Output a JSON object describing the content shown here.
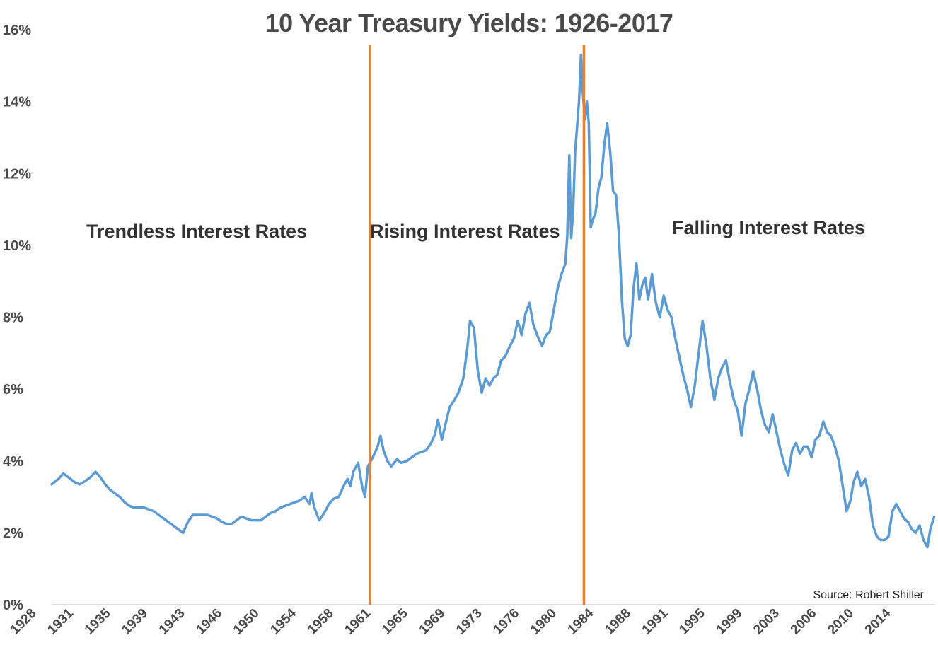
{
  "title": "10 Year Treasury Yields: 1926-2017",
  "colors": {
    "line": "#5b9bd5",
    "divider": "#ed7d31",
    "text": "#4a4a4a",
    "axis": "#d0d0d0"
  },
  "chart_data": {
    "type": "line",
    "title": "10 Year Treasury Yields: 1926-2017",
    "xlabel": "",
    "ylabel": "",
    "xlim": [
      1926.8,
      2017.6
    ],
    "ylim": [
      0,
      16
    ],
    "y_ticks": [
      0,
      2,
      4,
      6,
      8,
      10,
      12,
      14,
      16
    ],
    "y_tick_labels": [
      "0%",
      "2%",
      "4%",
      "6%",
      "8%",
      "10%",
      "12%",
      "14%",
      "16%"
    ],
    "x_tick_labels": [
      "1928",
      "1931",
      "1935",
      "1939",
      "1943",
      "1946",
      "1950",
      "1954",
      "1958",
      "1961",
      "1965",
      "1969",
      "1973",
      "1976",
      "1980",
      "1984",
      "1988",
      "1991",
      "1995",
      "1999",
      "2003",
      "2006",
      "2010",
      "2014"
    ],
    "grid": false,
    "legend": "none",
    "dividers": [
      1959.5,
      1981.5
    ],
    "regions": [
      "Trendless Interest Rates",
      "Rising Interest Rates",
      "Falling Interest Rates"
    ],
    "source": "Source: Robert Shiller",
    "series": [
      {
        "x": [
          1926.8,
          1927.5,
          1928.0,
          1928.5,
          1929.2,
          1929.7,
          1930.3,
          1930.8,
          1931.3,
          1931.8,
          1932.3,
          1932.8,
          1933.3,
          1933.8,
          1934.3,
          1934.8,
          1935.3,
          1935.8,
          1936.3,
          1936.8,
          1937.3,
          1937.8,
          1938.3,
          1938.8,
          1939.3,
          1939.8,
          1940.3,
          1940.8,
          1941.3,
          1941.8,
          1942.3,
          1942.8,
          1943.3,
          1943.8,
          1944.3,
          1944.8,
          1945.3,
          1945.8,
          1946.3,
          1946.8,
          1947.3,
          1947.8,
          1948.3,
          1948.8,
          1949.3,
          1949.8,
          1950.3,
          1950.8,
          1951.3,
          1951.8,
          1952.3,
          1952.8,
          1953.3,
          1953.5,
          1953.8,
          1954.3,
          1954.8,
          1955.3,
          1955.8,
          1956.3,
          1956.8,
          1957.2,
          1957.5,
          1957.8,
          1958.3,
          1958.7,
          1959.0,
          1959.3,
          1959.8,
          1960.3,
          1960.6,
          1960.9,
          1961.3,
          1961.7,
          1962.3,
          1962.7,
          1963.3,
          1963.8,
          1964.3,
          1964.8,
          1965.3,
          1965.8,
          1966.2,
          1966.5,
          1966.9,
          1967.3,
          1967.7,
          1968.2,
          1968.6,
          1969.1,
          1969.5,
          1969.8,
          1970.2,
          1970.6,
          1971.0,
          1971.4,
          1971.8,
          1972.2,
          1972.6,
          1973.0,
          1973.4,
          1973.9,
          1974.3,
          1974.7,
          1975.1,
          1975.5,
          1975.9,
          1976.3,
          1976.7,
          1977.2,
          1977.6,
          1978.0,
          1978.4,
          1978.8,
          1979.2,
          1979.6,
          1979.8,
          1980.0,
          1980.2,
          1980.4,
          1980.6,
          1980.8,
          1981.0,
          1981.2,
          1981.4,
          1981.6,
          1981.8,
          1982.0,
          1982.2,
          1982.4,
          1982.7,
          1983.0,
          1983.3,
          1983.6,
          1983.9,
          1984.2,
          1984.5,
          1984.8,
          1985.1,
          1985.4,
          1985.7,
          1986.0,
          1986.3,
          1986.6,
          1986.9,
          1987.2,
          1987.5,
          1987.8,
          1988.1,
          1988.5,
          1988.9,
          1989.3,
          1989.7,
          1990.1,
          1990.5,
          1990.9,
          1991.3,
          1991.7,
          1992.1,
          1992.5,
          1992.9,
          1993.3,
          1993.7,
          1994.1,
          1994.5,
          1994.9,
          1995.3,
          1995.7,
          1996.1,
          1996.5,
          1996.9,
          1997.3,
          1997.7,
          1998.1,
          1998.5,
          1998.9,
          1999.3,
          1999.7,
          2000.1,
          2000.5,
          2000.9,
          2001.3,
          2001.7,
          2002.1,
          2002.5,
          2002.9,
          2003.3,
          2003.7,
          2004.1,
          2004.5,
          2004.9,
          2005.3,
          2005.7,
          2006.1,
          2006.5,
          2006.9,
          2007.3,
          2007.7,
          2008.1,
          2008.5,
          2008.9,
          2009.2,
          2009.6,
          2010.0,
          2010.4,
          2010.8,
          2011.2,
          2011.6,
          2012.0,
          2012.4,
          2012.8,
          2013.2,
          2013.6,
          2014.0,
          2014.4,
          2014.8,
          2015.2,
          2015.6,
          2016.0,
          2016.4,
          2016.8,
          2017.1,
          2017.5
        ],
        "values": [
          3.35,
          3.5,
          3.65,
          3.55,
          3.4,
          3.35,
          3.45,
          3.55,
          3.7,
          3.55,
          3.35,
          3.2,
          3.1,
          3.0,
          2.85,
          2.75,
          2.7,
          2.7,
          2.7,
          2.65,
          2.6,
          2.5,
          2.4,
          2.3,
          2.2,
          2.1,
          2.0,
          2.3,
          2.5,
          2.5,
          2.5,
          2.5,
          2.45,
          2.4,
          2.3,
          2.25,
          2.25,
          2.35,
          2.45,
          2.4,
          2.35,
          2.35,
          2.35,
          2.45,
          2.55,
          2.6,
          2.7,
          2.75,
          2.8,
          2.85,
          2.9,
          3.0,
          2.8,
          3.1,
          2.7,
          2.35,
          2.55,
          2.8,
          2.95,
          3.0,
          3.3,
          3.5,
          3.3,
          3.7,
          3.95,
          3.3,
          3.0,
          3.85,
          4.1,
          4.4,
          4.7,
          4.3,
          4.0,
          3.85,
          4.05,
          3.95,
          4.0,
          4.1,
          4.2,
          4.25,
          4.3,
          4.5,
          4.75,
          5.15,
          4.6,
          5.05,
          5.5,
          5.7,
          5.9,
          6.3,
          7.1,
          7.9,
          7.7,
          6.5,
          5.9,
          6.3,
          6.1,
          6.3,
          6.4,
          6.8,
          6.9,
          7.2,
          7.4,
          7.9,
          7.5,
          8.1,
          8.4,
          7.8,
          7.5,
          7.2,
          7.5,
          7.6,
          8.2,
          8.8,
          9.2,
          9.5,
          10.3,
          12.5,
          10.2,
          11.0,
          12.6,
          13.3,
          14.0,
          15.3,
          14.2,
          13.5,
          14.0,
          13.4,
          10.5,
          10.7,
          10.9,
          11.6,
          11.9,
          12.8,
          13.4,
          12.6,
          11.5,
          11.4,
          10.3,
          8.5,
          7.4,
          7.2,
          7.5,
          8.8,
          9.5,
          8.5,
          8.9,
          9.1,
          8.5,
          9.2,
          8.4,
          8.0,
          8.6,
          8.2,
          8.0,
          7.4,
          6.9,
          6.4,
          6.0,
          5.5,
          6.1,
          7.0,
          7.9,
          7.2,
          6.3,
          5.7,
          6.3,
          6.6,
          6.8,
          6.2,
          5.7,
          5.4,
          4.7,
          5.6,
          6.0,
          6.5,
          6.0,
          5.4,
          5.0,
          4.8,
          5.3,
          4.8,
          4.3,
          3.9,
          3.6,
          4.3,
          4.5,
          4.2,
          4.4,
          4.4,
          4.1,
          4.6,
          4.7,
          5.1,
          4.8,
          4.7,
          4.4,
          4.0,
          3.3,
          2.6,
          2.9,
          3.4,
          3.7,
          3.3,
          3.5,
          3.0,
          2.2,
          1.9,
          1.8,
          1.8,
          1.9,
          2.6,
          2.8,
          2.6,
          2.4,
          2.3,
          2.1,
          2.0,
          2.2,
          1.8,
          1.6,
          2.1,
          2.45
        ]
      }
    ]
  }
}
